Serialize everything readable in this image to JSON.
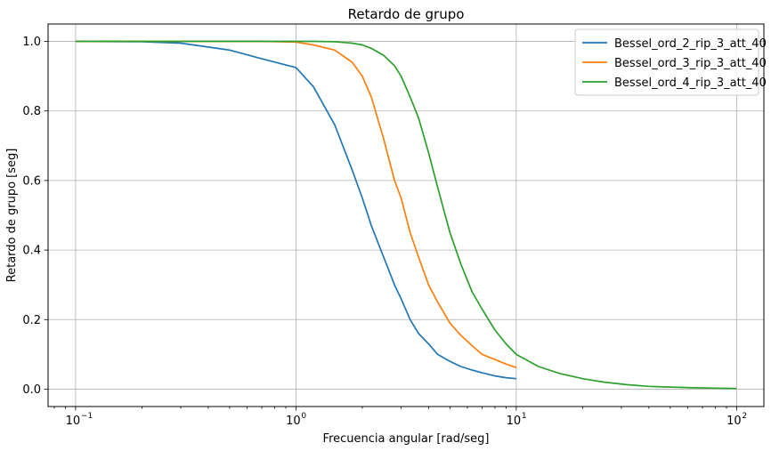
{
  "chart_data": {
    "type": "line",
    "title": "Retardo de grupo",
    "xlabel": "Frecuencia angular [rad/seg]",
    "ylabel": "Retardo de grupo [seg]",
    "xscale": "log",
    "xlim": [
      0.075,
      133
    ],
    "ylim": [
      -0.05,
      1.05
    ],
    "x_ticks": [
      {
        "value": 0.1,
        "base": "10",
        "exp": "−1"
      },
      {
        "value": 1,
        "base": "10",
        "exp": "0"
      },
      {
        "value": 10,
        "base": "10",
        "exp": "1"
      },
      {
        "value": 100,
        "base": "10",
        "exp": "2"
      }
    ],
    "y_ticks": [
      {
        "value": 0.0,
        "label": "0.0"
      },
      {
        "value": 0.2,
        "label": "0.2"
      },
      {
        "value": 0.4,
        "label": "0.4"
      },
      {
        "value": 0.6,
        "label": "0.6"
      },
      {
        "value": 0.8,
        "label": "0.8"
      },
      {
        "value": 1.0,
        "label": "1.0"
      }
    ],
    "grid": true,
    "legend_position": "top-right",
    "x": [
      0.1,
      0.2,
      0.3,
      0.5,
      0.7,
      1.0,
      1.2,
      1.5,
      1.8,
      2.0,
      2.2,
      2.5,
      2.8,
      3.0,
      3.3,
      3.6,
      4.0,
      4.4,
      5.0,
      5.6,
      6.3,
      7.0,
      8.0,
      9.0,
      10.0,
      12.6,
      15.8,
      20.0,
      25.1,
      31.6,
      39.8,
      50.1,
      63.1,
      79.4,
      100.0
    ],
    "series": [
      {
        "name": "Bessel_ord_2_rip_3_att_40",
        "color": "#1f77b4",
        "values": [
          1.0,
          0.999,
          0.995,
          0.975,
          0.95,
          0.925,
          0.87,
          0.76,
          0.63,
          0.55,
          0.47,
          0.38,
          0.3,
          0.26,
          0.2,
          0.16,
          0.13,
          0.1,
          0.08,
          0.065,
          0.055,
          0.047,
          0.038,
          0.033,
          0.03,
          null,
          null,
          null,
          null,
          null,
          null,
          null,
          null,
          null,
          null
        ]
      },
      {
        "name": "Bessel_ord_3_rip_3_att_40",
        "color": "#ff7f0e",
        "values": [
          1.0,
          1.0,
          1.0,
          1.0,
          1.0,
          0.998,
          0.99,
          0.975,
          0.94,
          0.9,
          0.84,
          0.72,
          0.6,
          0.55,
          0.45,
          0.38,
          0.3,
          0.25,
          0.19,
          0.155,
          0.125,
          0.1,
          0.085,
          0.072,
          0.062,
          null,
          null,
          null,
          null,
          null,
          null,
          null,
          null,
          null,
          null
        ]
      },
      {
        "name": "Bessel_ord_4_rip_3_att_40",
        "color": "#2ca02c",
        "values": [
          1.0,
          1.0,
          1.0,
          1.0,
          1.0,
          1.0,
          1.0,
          0.999,
          0.995,
          0.99,
          0.98,
          0.96,
          0.93,
          0.9,
          0.84,
          0.78,
          0.68,
          0.58,
          0.45,
          0.36,
          0.28,
          0.23,
          0.17,
          0.13,
          0.1,
          0.065,
          0.045,
          0.03,
          0.02,
          0.013,
          0.008,
          0.006,
          0.004,
          0.003,
          0.002
        ]
      }
    ]
  }
}
